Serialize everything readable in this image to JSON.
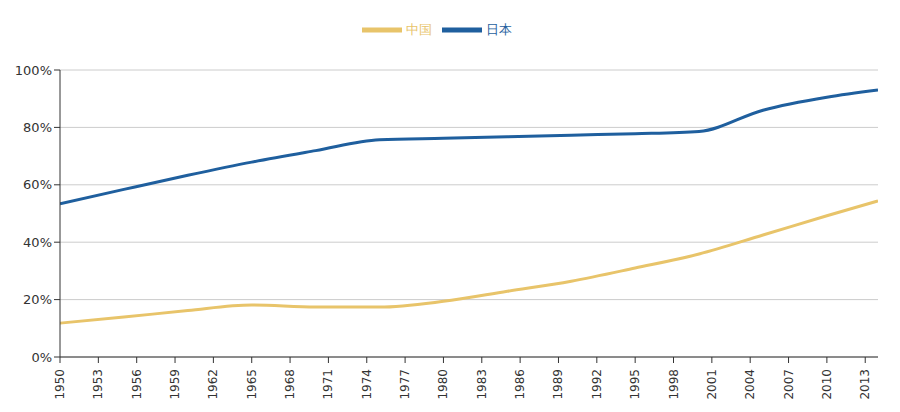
{
  "chart_data": {
    "type": "line",
    "x": [
      1950,
      1955,
      1960,
      1965,
      1970,
      1975,
      1980,
      1985,
      1990,
      1995,
      2000,
      2005,
      2010,
      2014
    ],
    "series": [
      {
        "name": "日本",
        "color": "#1f5f9e",
        "values": [
          53.4,
          58.4,
          63.3,
          67.9,
          71.9,
          75.7,
          76.2,
          76.7,
          77.3,
          77.8,
          78.6,
          86.0,
          90.5,
          93.0
        ]
      },
      {
        "name": "中国",
        "color": "#e8c46a",
        "values": [
          11.8,
          13.9,
          16.2,
          18.1,
          17.4,
          17.4,
          19.4,
          22.9,
          26.4,
          31.0,
          35.9,
          42.5,
          49.2,
          54.4
        ]
      }
    ],
    "xlim": [
      1950,
      2014
    ],
    "xticks": [
      1950,
      1953,
      1956,
      1959,
      1962,
      1965,
      1968,
      1971,
      1974,
      1977,
      1980,
      1983,
      1986,
      1989,
      1992,
      1995,
      1998,
      2001,
      2004,
      2007,
      2010,
      2013
    ],
    "ylim": [
      0,
      100
    ],
    "yticks": [
      {
        "value": 0,
        "label": "0%"
      },
      {
        "value": 20,
        "label": "20%"
      },
      {
        "value": 40,
        "label": "40%"
      },
      {
        "value": 60,
        "label": "60%"
      },
      {
        "value": 80,
        "label": "80%"
      },
      {
        "value": 100,
        "label": "100%"
      }
    ],
    "grid": true,
    "legend": "top"
  }
}
